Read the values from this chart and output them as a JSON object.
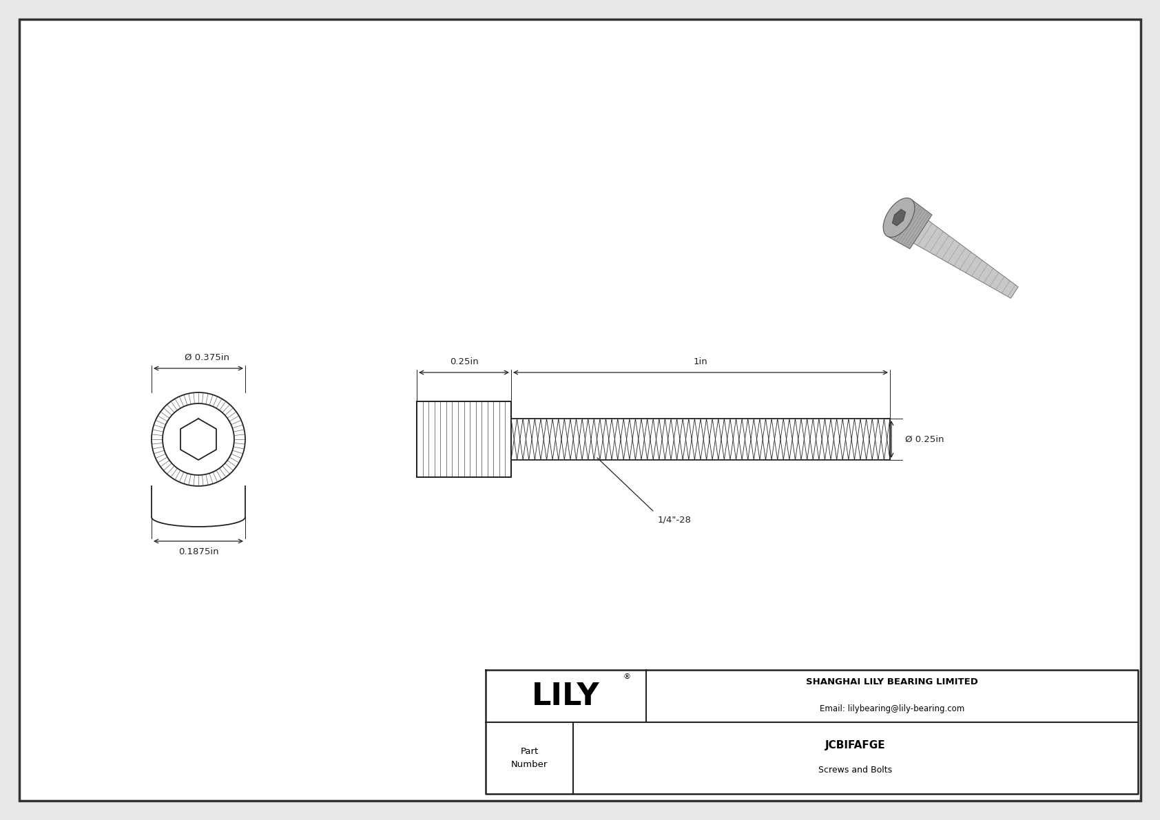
{
  "bg_color": "#e8e8e8",
  "drawing_bg": "#ffffff",
  "border_color": "#333333",
  "title_company": "SHANGHAI LILY BEARING LIMITED",
  "title_email": "Email: lilybearing@lily-bearing.com",
  "part_number": "JCBIFAFGE",
  "part_category": "Screws and Bolts",
  "part_label": "Part\nNumber",
  "dim_diameter_head": "Ø 0.375in",
  "dim_length_head": "0.25in",
  "dim_length_thread": "1in",
  "dim_diameter_shaft": "Ø 0.25in",
  "dim_height_head": "0.1875in",
  "dim_thread_label": "1/4\"-28",
  "line_color": "#222222",
  "dim_color": "#222222"
}
